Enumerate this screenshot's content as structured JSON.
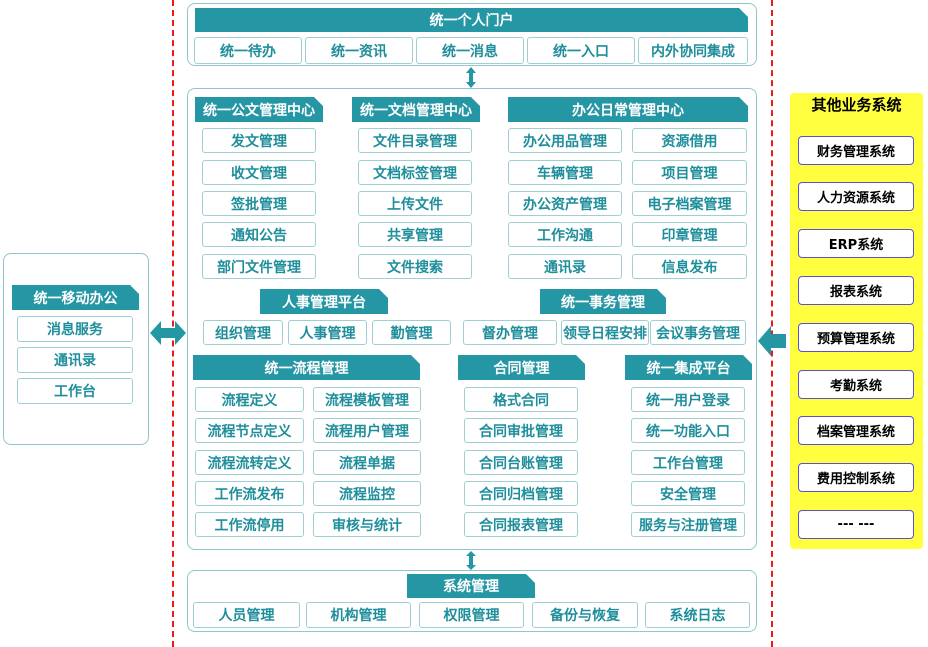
{
  "portal": {
    "title": "统一个人门户",
    "items": [
      "统一待办",
      "统一资讯",
      "统一消息",
      "统一入口",
      "内外协同集成"
    ]
  },
  "main": {
    "doc_center": {
      "title": "统一公文管理中心",
      "items": [
        "发文管理",
        "收文管理",
        "签批管理",
        "通知公告",
        "部门文件管理"
      ]
    },
    "file_center": {
      "title": "统一文档管理中心",
      "items": [
        "文件目录管理",
        "文档标签管理",
        "上传文件",
        "共享管理",
        "文件搜索"
      ]
    },
    "office_center": {
      "title": "办公日常管理中心",
      "items": [
        "办公用品管理",
        "资源借用",
        "车辆管理",
        "项目管理",
        "办公资产管理",
        "电子档案管理",
        "工作沟通",
        "印章管理",
        "通讯录",
        "信息发布"
      ]
    },
    "hr_platform": {
      "title": "人事管理平台",
      "items": [
        "组织管理",
        "人事管理",
        "勤管理"
      ]
    },
    "affairs": {
      "title": "统一事务管理",
      "items": [
        "督办管理",
        "领导日程安排",
        "会议事务管理"
      ]
    },
    "workflow": {
      "title": "统一流程管理",
      "items": [
        "流程定义",
        "流程模板管理",
        "流程节点定义",
        "流程用户管理",
        "流程流转定义",
        "流程单据",
        "工作流发布",
        "流程监控",
        "工作流停用",
        "审核与统计"
      ]
    },
    "contract": {
      "title": "合同管理",
      "items": [
        "格式合同",
        "合同审批管理",
        "合同台账管理",
        "合同归档管理",
        "合同报表管理"
      ]
    },
    "integration": {
      "title": "统一集成平台",
      "items": [
        "统一用户登录",
        "统一功能入口",
        "工作台管理",
        "安全管理",
        "服务与注册管理"
      ]
    }
  },
  "system": {
    "title": "系统管理",
    "items": [
      "人员管理",
      "机构管理",
      "权限管理",
      "备份与恢复",
      "系统日志"
    ]
  },
  "mobile": {
    "title": "统一移动办公",
    "items": [
      "消息服务",
      "通讯录",
      "工作台"
    ]
  },
  "other_systems": {
    "title": "其他业务系统",
    "items": [
      "财务管理系统",
      "人力资源系统",
      "ERP系统",
      "报表系统",
      "预算管理系统",
      "考勤系统",
      "档案管理系统",
      "费用控制系统",
      "--- ---"
    ]
  },
  "colors": {
    "accent": "#2596a4",
    "item_text": "#1f8e9b",
    "border": "#8fc7cc",
    "divider": "#f01818",
    "other_panel": "#ffff40",
    "other_border": "#5a50d8"
  }
}
